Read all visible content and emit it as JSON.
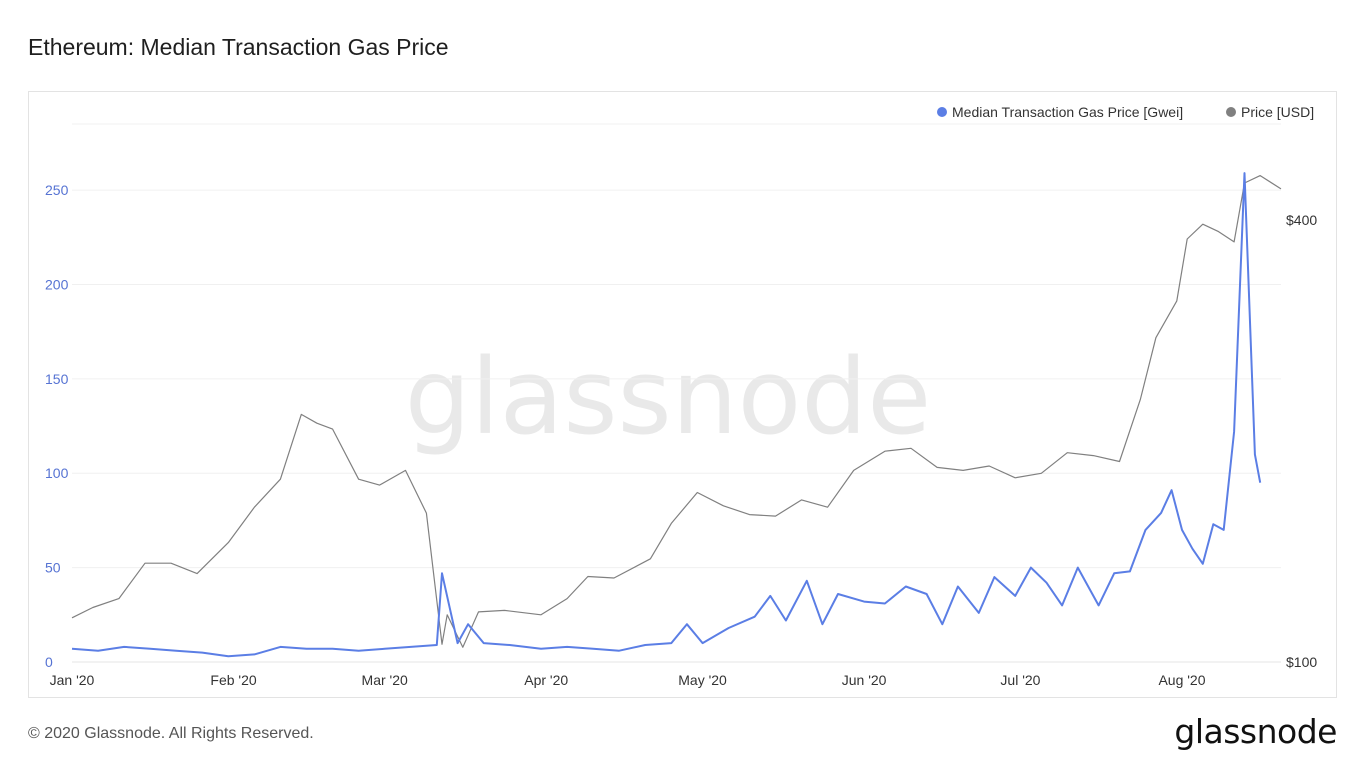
{
  "header": {
    "title": "Ethereum: Median Transaction Gas Price"
  },
  "footer": {
    "copyright": "© 2020 Glassnode. All Rights Reserved.",
    "logo": "glassnode"
  },
  "watermark": "glassnode",
  "colors": {
    "gas": "#5b7ee5",
    "price": "#808080",
    "grid": "#f0f0f0"
  },
  "chart_data": {
    "type": "line",
    "title": "Ethereum: Median Transaction Gas Price",
    "x_tick_labels": [
      "Jan '20",
      "Feb '20",
      "Mar '20",
      "Apr '20",
      "May '20",
      "Jun '20",
      "Jul '20",
      "Aug '20"
    ],
    "x_tick_dates": [
      "2020-01-01",
      "2020-02-01",
      "2020-03-01",
      "2020-04-01",
      "2020-05-01",
      "2020-06-01",
      "2020-07-01",
      "2020-08-01"
    ],
    "x_range": [
      "2020-01-01",
      "2020-08-20"
    ],
    "y_left": {
      "ticks": [
        0,
        50,
        100,
        150,
        200,
        250
      ],
      "range": [
        0,
        285
      ]
    },
    "y_right": {
      "ticks_labeled": [
        "$100",
        "$400"
      ],
      "range": [
        100,
        465
      ],
      "scale": "linear"
    },
    "legend": {
      "placement": "top-right"
    },
    "grid": true,
    "series": [
      {
        "name": "Median Transaction Gas Price [Gwei]",
        "axis": "left",
        "color": "#5b7ee5",
        "points": [
          [
            "2020-01-01",
            7
          ],
          [
            "2020-01-06",
            6
          ],
          [
            "2020-01-11",
            8
          ],
          [
            "2020-01-16",
            7
          ],
          [
            "2020-01-21",
            6
          ],
          [
            "2020-01-26",
            5
          ],
          [
            "2020-01-31",
            3
          ],
          [
            "2020-02-05",
            4
          ],
          [
            "2020-02-10",
            8
          ],
          [
            "2020-02-15",
            7
          ],
          [
            "2020-02-20",
            7
          ],
          [
            "2020-02-25",
            6
          ],
          [
            "2020-03-01",
            7
          ],
          [
            "2020-03-06",
            8
          ],
          [
            "2020-03-11",
            9
          ],
          [
            "2020-03-12",
            47
          ],
          [
            "2020-03-15",
            10
          ],
          [
            "2020-03-17",
            20
          ],
          [
            "2020-03-20",
            10
          ],
          [
            "2020-03-25",
            9
          ],
          [
            "2020-03-31",
            7
          ],
          [
            "2020-04-05",
            8
          ],
          [
            "2020-04-10",
            7
          ],
          [
            "2020-04-15",
            6
          ],
          [
            "2020-04-20",
            9
          ],
          [
            "2020-04-25",
            10
          ],
          [
            "2020-04-28",
            20
          ],
          [
            "2020-05-01",
            10
          ],
          [
            "2020-05-06",
            18
          ],
          [
            "2020-05-11",
            24
          ],
          [
            "2020-05-14",
            35
          ],
          [
            "2020-05-17",
            22
          ],
          [
            "2020-05-21",
            43
          ],
          [
            "2020-05-24",
            20
          ],
          [
            "2020-05-27",
            36
          ],
          [
            "2020-06-01",
            32
          ],
          [
            "2020-06-05",
            31
          ],
          [
            "2020-06-09",
            40
          ],
          [
            "2020-06-13",
            36
          ],
          [
            "2020-06-16",
            20
          ],
          [
            "2020-06-19",
            40
          ],
          [
            "2020-06-23",
            26
          ],
          [
            "2020-06-26",
            45
          ],
          [
            "2020-06-30",
            35
          ],
          [
            "2020-07-03",
            50
          ],
          [
            "2020-07-06",
            42
          ],
          [
            "2020-07-09",
            30
          ],
          [
            "2020-07-12",
            50
          ],
          [
            "2020-07-16",
            30
          ],
          [
            "2020-07-19",
            47
          ],
          [
            "2020-07-22",
            48
          ],
          [
            "2020-07-25",
            70
          ],
          [
            "2020-07-28",
            79
          ],
          [
            "2020-07-30",
            91
          ],
          [
            "2020-08-01",
            70
          ],
          [
            "2020-08-03",
            60
          ],
          [
            "2020-08-05",
            52
          ],
          [
            "2020-08-07",
            73
          ],
          [
            "2020-08-09",
            70
          ],
          [
            "2020-08-11",
            122
          ],
          [
            "2020-08-13",
            259
          ],
          [
            "2020-08-15",
            110
          ],
          [
            "2020-08-16",
            95
          ]
        ]
      },
      {
        "name": "Price [USD]",
        "axis": "right",
        "color": "#808080",
        "points": [
          [
            "2020-01-01",
            130
          ],
          [
            "2020-01-05",
            137
          ],
          [
            "2020-01-10",
            143
          ],
          [
            "2020-01-15",
            167
          ],
          [
            "2020-01-20",
            167
          ],
          [
            "2020-01-25",
            160
          ],
          [
            "2020-01-31",
            181
          ],
          [
            "2020-02-05",
            205
          ],
          [
            "2020-02-10",
            224
          ],
          [
            "2020-02-14",
            268
          ],
          [
            "2020-02-17",
            262
          ],
          [
            "2020-02-20",
            258
          ],
          [
            "2020-02-25",
            224
          ],
          [
            "2020-02-29",
            220
          ],
          [
            "2020-03-05",
            230
          ],
          [
            "2020-03-09",
            201
          ],
          [
            "2020-03-12",
            112
          ],
          [
            "2020-03-13",
            132
          ],
          [
            "2020-03-16",
            110
          ],
          [
            "2020-03-19",
            134
          ],
          [
            "2020-03-24",
            135
          ],
          [
            "2020-03-31",
            132
          ],
          [
            "2020-04-05",
            143
          ],
          [
            "2020-04-09",
            158
          ],
          [
            "2020-04-14",
            157
          ],
          [
            "2020-04-21",
            170
          ],
          [
            "2020-04-25",
            194
          ],
          [
            "2020-04-30",
            215
          ],
          [
            "2020-05-05",
            206
          ],
          [
            "2020-05-10",
            200
          ],
          [
            "2020-05-15",
            199
          ],
          [
            "2020-05-20",
            210
          ],
          [
            "2020-05-25",
            205
          ],
          [
            "2020-05-30",
            230
          ],
          [
            "2020-06-05",
            243
          ],
          [
            "2020-06-10",
            245
          ],
          [
            "2020-06-15",
            232
          ],
          [
            "2020-06-20",
            230
          ],
          [
            "2020-06-25",
            233
          ],
          [
            "2020-06-30",
            225
          ],
          [
            "2020-07-05",
            228
          ],
          [
            "2020-07-10",
            242
          ],
          [
            "2020-07-15",
            240
          ],
          [
            "2020-07-20",
            236
          ],
          [
            "2020-07-24",
            278
          ],
          [
            "2020-07-27",
            320
          ],
          [
            "2020-07-31",
            345
          ],
          [
            "2020-08-02",
            387
          ],
          [
            "2020-08-05",
            397
          ],
          [
            "2020-08-08",
            392
          ],
          [
            "2020-08-11",
            385
          ],
          [
            "2020-08-13",
            425
          ],
          [
            "2020-08-16",
            430
          ],
          [
            "2020-08-20",
            421
          ]
        ]
      }
    ]
  }
}
